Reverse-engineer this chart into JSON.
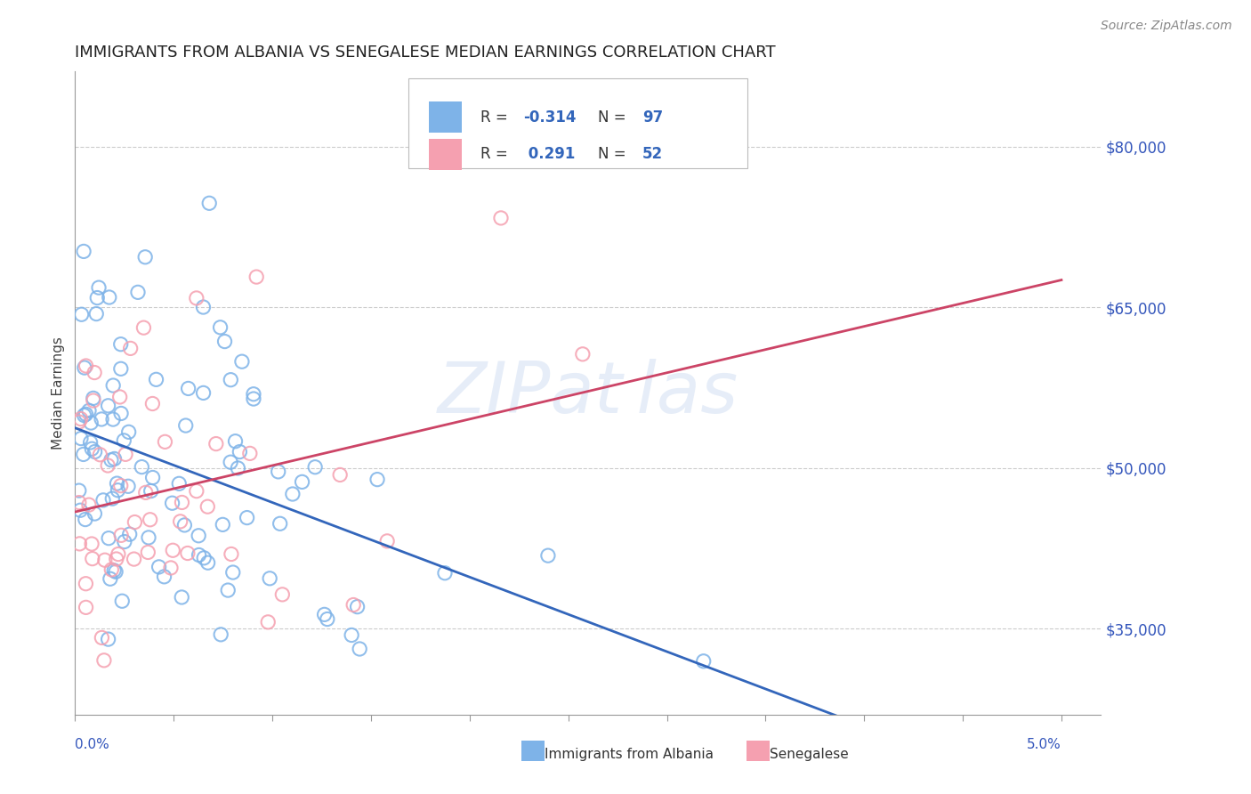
{
  "title": "IMMIGRANTS FROM ALBANIA VS SENEGALESE MEDIAN EARNINGS CORRELATION CHART",
  "source": "Source: ZipAtlas.com",
  "ylabel": "Median Earnings",
  "yticks": [
    35000,
    50000,
    65000,
    80000
  ],
  "ytick_labels": [
    "$35,000",
    "$50,000",
    "$65,000",
    "$80,000"
  ],
  "xlim": [
    0.0,
    5.2
  ],
  "ylim": [
    27000,
    87000
  ],
  "color_albania": "#7EB3E8",
  "color_senegalese": "#F5A0B0",
  "color_line_albania": "#3366BB",
  "color_line_senegalese": "#CC4466",
  "color_axis_label": "#3355BB",
  "watermark": "ZIPat las",
  "albania_R": -0.314,
  "albania_N": 97,
  "senegalese_R": 0.291,
  "senegalese_N": 52,
  "legend_R_color": "#3366BB",
  "legend_val_color": "#3366BB"
}
